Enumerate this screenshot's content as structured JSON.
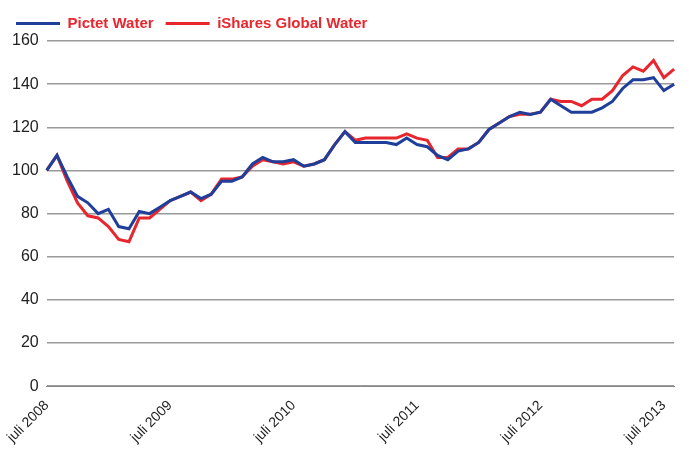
{
  "chart_data": {
    "type": "line",
    "categories": [
      "juli 2008",
      null,
      null,
      null,
      null,
      null,
      null,
      null,
      null,
      null,
      null,
      null,
      "juli 2009",
      null,
      null,
      null,
      null,
      null,
      null,
      null,
      null,
      null,
      null,
      null,
      "juli 2010",
      null,
      null,
      null,
      null,
      null,
      null,
      null,
      null,
      null,
      null,
      null,
      "juli 2011",
      null,
      null,
      null,
      null,
      null,
      null,
      null,
      null,
      null,
      null,
      null,
      "juli 2012",
      null,
      null,
      null,
      null,
      null,
      null,
      null,
      null,
      null,
      null,
      null,
      "juli 2013",
      null
    ],
    "series": [
      {
        "name": "Pictet Water",
        "color": "#1f3f9a",
        "values": [
          100,
          107,
          97,
          88,
          85,
          80,
          82,
          74,
          73,
          81,
          80,
          83,
          86,
          88,
          90,
          87,
          89,
          95,
          95,
          97,
          103,
          106,
          104,
          104,
          105,
          102,
          103,
          105,
          112,
          118,
          113,
          113,
          113,
          113,
          112,
          115,
          112,
          111,
          107,
          105,
          109,
          110,
          113,
          119,
          122,
          125,
          127,
          126,
          127,
          133,
          130,
          127,
          127,
          127,
          129,
          132,
          138,
          142,
          142,
          143,
          137,
          140
        ]
      },
      {
        "name": "iShares Global Water",
        "color": "#e8262d",
        "values": [
          100,
          107,
          95,
          85,
          79,
          78,
          74,
          68,
          67,
          78,
          78,
          82,
          86,
          88,
          90,
          86,
          89,
          96,
          96,
          97,
          102,
          105,
          104,
          103,
          104,
          102,
          103,
          105,
          112,
          118,
          114,
          115,
          115,
          115,
          115,
          117,
          115,
          114,
          106,
          106,
          110,
          110,
          113,
          119,
          122,
          125,
          126,
          126,
          127,
          133,
          132,
          132,
          130,
          133,
          133,
          137,
          144,
          148,
          146,
          151,
          143,
          147
        ]
      }
    ],
    "ylim": [
      0,
      160
    ],
    "yticks": [
      0,
      20,
      40,
      60,
      80,
      100,
      120,
      140,
      160
    ],
    "grid": true,
    "legend": "top-left"
  }
}
